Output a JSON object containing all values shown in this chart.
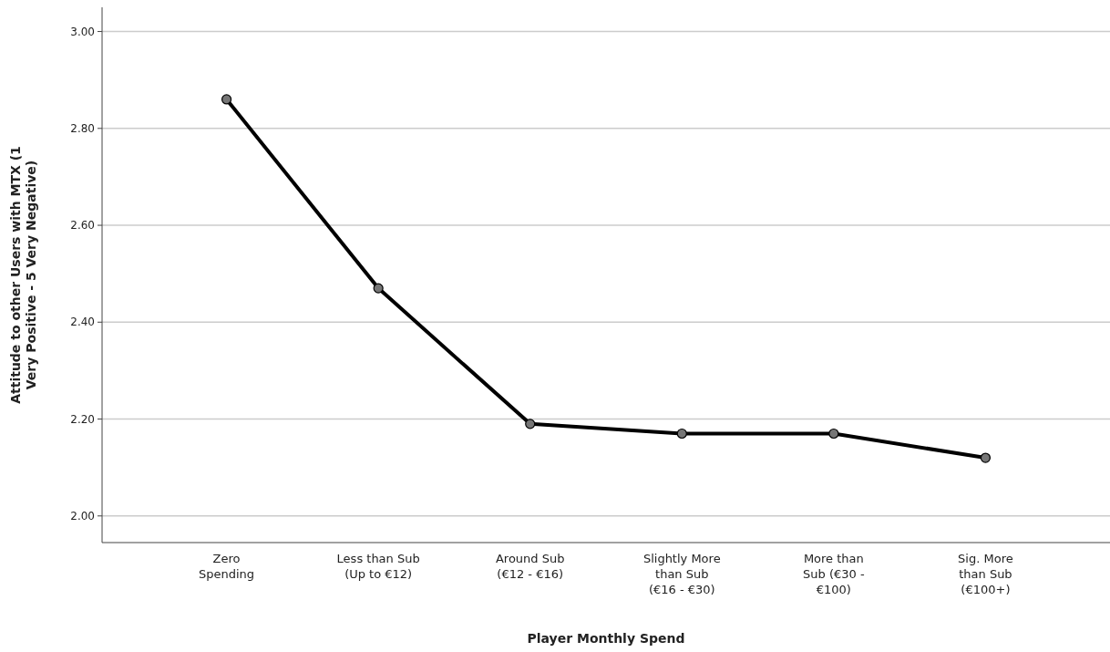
{
  "chart_data": {
    "type": "line",
    "xlabel": "Player Monthly Spend",
    "ylabel": "Attitude to other Users with MTX (1 Very Positive - 5 Very Negative)",
    "categories": [
      "Zero Spending",
      "Less than Sub (Up to €12)",
      "Around Sub (€12 - €16)",
      "Slightly More than Sub (€16 - €30)",
      "More than Sub (€30 - €100)",
      "Sig. More than Sub (€100+)"
    ],
    "series": [
      {
        "color": "#000000",
        "values": [
          2.86,
          2.47,
          2.19,
          2.17,
          2.17,
          2.12
        ]
      }
    ],
    "ylim": [
      1.945,
      3.05
    ],
    "yticks": [
      {
        "value": 2,
        "label": "2.00"
      },
      {
        "value": 2.2,
        "label": "2.20"
      },
      {
        "value": 2.4,
        "label": "2.40"
      },
      {
        "value": 2.6,
        "label": "2.60"
      },
      {
        "value": 2.8,
        "label": "2.80"
      },
      {
        "value": 3,
        "label": "3.00"
      }
    ],
    "grid": "y",
    "marker": "circle",
    "line_style": "solid"
  }
}
